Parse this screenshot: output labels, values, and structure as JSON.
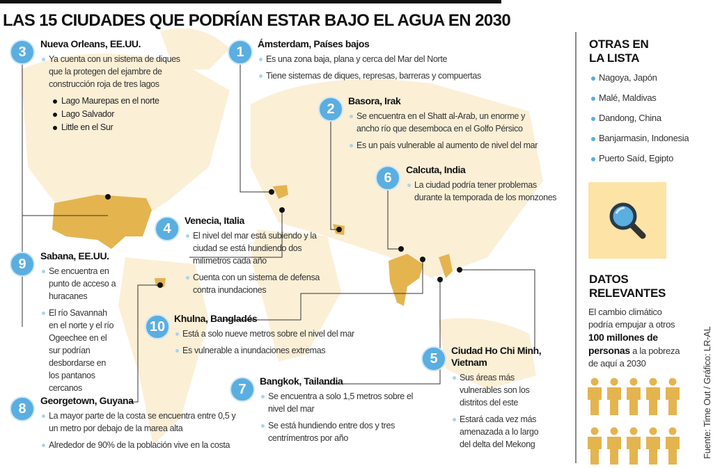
{
  "title": "LAS 15 CIUDADES QUE PODRÍAN ESTAR BAJO EL AGUA EN 2030",
  "cities": [
    {
      "num": "3",
      "name": "Nueva Orleans, EE.UU.",
      "bullets": [
        "Ya cuenta con un sistema de diques que la protegen del ejambre de construcción roja de tres lagos"
      ],
      "sub": [
        "Lago Maurepas en el norte",
        "Lago Salvador",
        "Little en el Sur"
      ]
    },
    {
      "num": "1",
      "name": "Ámsterdam, Países bajos",
      "bullets": [
        "Es una zona baja, plana y cerca del Mar del Norte",
        "Tiene sistemas de diques, represas, barreras y compuertas"
      ]
    },
    {
      "num": "2",
      "name": "Basora, Irak",
      "bullets": [
        "Se encuentra en el Shatt al-Arab, un enorme y ancho río que desemboca en el Golfo Pérsico",
        "Es un país vulnerable al aumento de nivel del mar"
      ]
    },
    {
      "num": "6",
      "name": "Calcuta, India",
      "bullets": [
        "La ciudad podría tener problemas durante la temporada de los monzones"
      ]
    },
    {
      "num": "4",
      "name": "Venecia, Italia",
      "bullets": [
        "El nivel del mar está subiendo y la ciudad se está hundiendo dos milímetros cada año",
        "Cuenta con un sistema de defensa contra inundaciones"
      ]
    },
    {
      "num": "9",
      "name": "Sabana, EE.UU.",
      "bullets": [
        "Se encuentra en punto de acceso a huracanes",
        "El río Savannah en el norte y el río Ogeechee en el sur podrían desbordarse en los pantanos cercanos"
      ]
    },
    {
      "num": "10",
      "name": "Khulna, Bangladés",
      "bullets": [
        "Está a solo nueve metros sobre el nivel del mar",
        "Es vulnerable a inundaciones extremas"
      ]
    },
    {
      "num": "8",
      "name": "Georgetown, Guyana",
      "bullets": [
        "La mayor parte de la costa  se encuentra entre 0,5 y un metro por debajo de la marea alta",
        "Alrededor de 90% de la población vive en la costa"
      ]
    },
    {
      "num": "7",
      "name": "Bangkok, Tailandia",
      "bullets": [
        "Se encuentra a solo 1,5 metros sobre el nivel del mar",
        "Se está hundiendo entre dos y tres centrímentros por año"
      ]
    },
    {
      "num": "5",
      "name": "Ciudad Ho Chi Minh, Vietnam",
      "bullets": [
        "Sus áreas más vulnerables son los distritos del este",
        "Estará cada vez más amenazada a lo largo del delta del Mekong"
      ]
    }
  ],
  "sidebar": {
    "otras_title_1": "OTRAS EN",
    "otras_title_2": "LA LISTA",
    "otras": [
      "Nagoya, Japón",
      "Malé, Maldivas",
      "Dandong, China",
      "Banjarmasin, Indonesia",
      "Puerto Saíd, Egipto"
    ],
    "datos_title_1": "DATOS",
    "datos_title_2": "RELEVANTES",
    "datos_pre": "El cambio climático podría empujar a otros ",
    "datos_bold": "100 millones de personas",
    "datos_post": " a la pobreza de aquí a 2030",
    "people_count": 10,
    "source": "Fuente: Time Out / Gráfico: LR-AL"
  },
  "colors": {
    "accent": "#5aaee0",
    "gold": "#e4b44f",
    "map": "#fbefd6"
  }
}
